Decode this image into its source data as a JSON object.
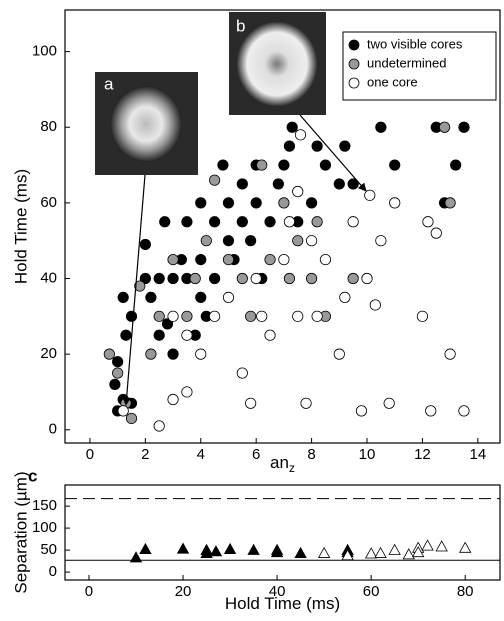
{
  "chart_data": [
    {
      "type": "scatter",
      "xlabel": "an",
      "xlabel_sub": "z",
      "ylabel": "Hold Time (ms)",
      "xlim": [
        -0.9,
        14.8
      ],
      "ylim": [
        -3.5,
        111
      ],
      "xticks": [
        0,
        2,
        4,
        6,
        8,
        10,
        12,
        14
      ],
      "yticks": [
        0,
        20,
        40,
        60,
        80,
        100
      ],
      "legend": "upper right",
      "annotations": [
        "a",
        "b"
      ],
      "series": [
        {
          "name": "two visible cores",
          "color": "#000000",
          "marker": "circle",
          "x": [
            1,
            1.2,
            1.5,
            0.9,
            1,
            1.3,
            1.5,
            1.2,
            2,
            2,
            2.2,
            2.5,
            2.8,
            2.5,
            2.7,
            3,
            3,
            3.3,
            3.5,
            3.5,
            3.8,
            4,
            4,
            4,
            4.2,
            4.5,
            4.5,
            4.8,
            5,
            5,
            5.2,
            5.5,
            5.5,
            5.8,
            6,
            6,
            6.2,
            6.5,
            6.8,
            7,
            7.2,
            7.3,
            7.5,
            8,
            8.2,
            8.5,
            9,
            9.2,
            9.5,
            10.5,
            11,
            12.5,
            13.2,
            13.5,
            12.8
          ],
          "y": [
            5,
            8,
            7,
            12,
            18,
            25,
            30,
            35,
            40,
            49,
            35,
            25,
            28,
            40,
            55,
            20,
            40,
            45,
            40,
            55,
            25,
            35,
            45,
            60,
            30,
            40,
            55,
            70,
            50,
            60,
            45,
            55,
            65,
            50,
            70,
            60,
            40,
            55,
            65,
            70,
            75,
            80,
            55,
            60,
            75,
            70,
            65,
            75,
            65,
            80,
            70,
            80,
            70,
            80,
            60
          ]
        },
        {
          "name": "undetermined",
          "color": "#999999",
          "marker": "circle",
          "x": [
            0.7,
            1,
            1.3,
            1.5,
            1.8,
            2.2,
            2.5,
            3,
            3.5,
            3.8,
            4.2,
            4.5,
            5,
            5.5,
            5.8,
            6.2,
            6.5,
            7,
            7.2,
            7.5,
            8,
            8.2,
            8.5,
            9.5,
            12.8,
            13
          ],
          "y": [
            20,
            15,
            7,
            3,
            38,
            20,
            30,
            45,
            30,
            40,
            50,
            66,
            45,
            40,
            30,
            70,
            45,
            60,
            40,
            50,
            40,
            55,
            30,
            40,
            80,
            60
          ]
        },
        {
          "name": "one core",
          "color": "#ffffff",
          "marker": "circle",
          "x": [
            1.2,
            2.5,
            3,
            3.5,
            3,
            3.5,
            4,
            4.5,
            5,
            5.5,
            5.8,
            6,
            6.2,
            6.5,
            7,
            7.2,
            7.5,
            7.8,
            8,
            8.2,
            8.5,
            9,
            9.2,
            9.5,
            9.8,
            10,
            10.1,
            10.3,
            10.5,
            10.8,
            11,
            12,
            12.2,
            12.3,
            12.5,
            13,
            13.5,
            7.5,
            7.6
          ],
          "y": [
            5,
            1,
            8,
            10,
            30,
            25,
            20,
            30,
            35,
            15,
            7,
            40,
            30,
            25,
            45,
            55,
            30,
            7,
            50,
            30,
            45,
            20,
            35,
            55,
            5,
            40,
            62,
            33,
            50,
            7,
            60,
            30,
            55,
            5,
            52,
            20,
            5,
            63,
            78
          ]
        }
      ]
    },
    {
      "type": "scatter",
      "panel": "c",
      "xlabel": "Hold Time (ms)",
      "ylabel": "Separation (µm)",
      "xlim": [
        -5.1,
        87.4
      ],
      "ylim": [
        -18,
        198
      ],
      "xticks": [
        0,
        20,
        40,
        60,
        80
      ],
      "yticks": [
        0,
        50,
        100,
        150
      ],
      "hlines": [
        {
          "value": 167,
          "style": "dashed"
        },
        {
          "value": 27,
          "style": "solid"
        }
      ],
      "series": [
        {
          "color": "#000000",
          "marker": "triangle",
          "x": [
            10,
            12,
            20,
            25,
            25,
            27,
            30,
            35,
            40,
            40,
            45,
            55,
            55
          ],
          "y": [
            33,
            52,
            53,
            50,
            43,
            47,
            52,
            50,
            50,
            45,
            43,
            50,
            45
          ]
        },
        {
          "color": "#ffffff",
          "marker": "triangle",
          "x": [
            50,
            55,
            60,
            62,
            65,
            68,
            70,
            70,
            72,
            75,
            80
          ],
          "y": [
            43,
            38,
            42,
            43,
            50,
            40,
            55,
            45,
            60,
            58,
            55
          ]
        }
      ]
    }
  ]
}
